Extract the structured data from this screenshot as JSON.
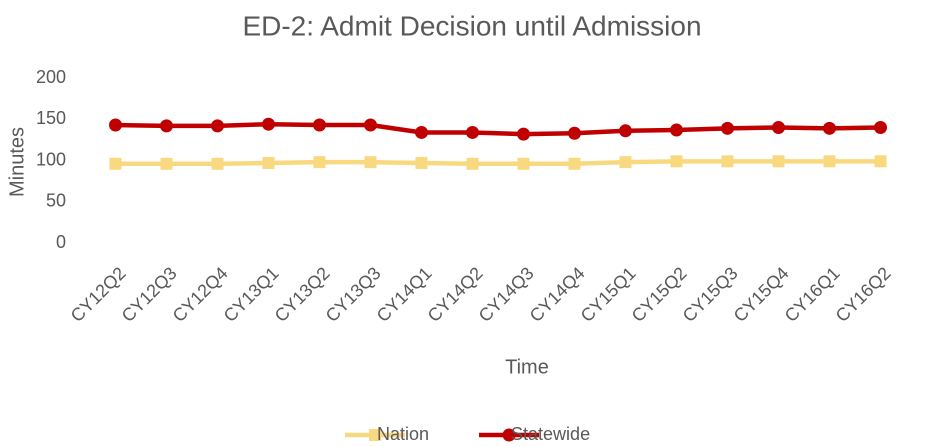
{
  "chart_data": {
    "type": "line",
    "title": "ED-2: Admit Decision until Admission",
    "x_label": "Time",
    "y_label": "Minutes",
    "categories": [
      "CY12Q2",
      "CY12Q3",
      "CY12Q4",
      "CY13Q1",
      "CY13Q2",
      "CY13Q3",
      "CY14Q1",
      "CY14Q2",
      "CY14Q3",
      "CY14Q4",
      "CY15Q1",
      "CY15Q2",
      "CY15Q3",
      "CY15Q4",
      "CY16Q1",
      "CY16Q2"
    ],
    "series": [
      {
        "name": "Nation",
        "color": "#f9d97f",
        "marker": "square",
        "values": [
          96,
          96,
          96,
          97,
          98,
          98,
          97,
          96,
          96,
          96,
          98,
          99,
          99,
          99,
          99,
          99
        ]
      },
      {
        "name": "Statewide",
        "color": "#c00000",
        "marker": "circle",
        "values": [
          143,
          142,
          142,
          144,
          143,
          143,
          134,
          134,
          132,
          133,
          136,
          137,
          139,
          140,
          139,
          140
        ]
      }
    ],
    "ylim": [
      0,
      200
    ],
    "yticks": [
      0,
      50,
      100,
      150,
      200
    ],
    "grid": false,
    "legend": "bottom"
  }
}
